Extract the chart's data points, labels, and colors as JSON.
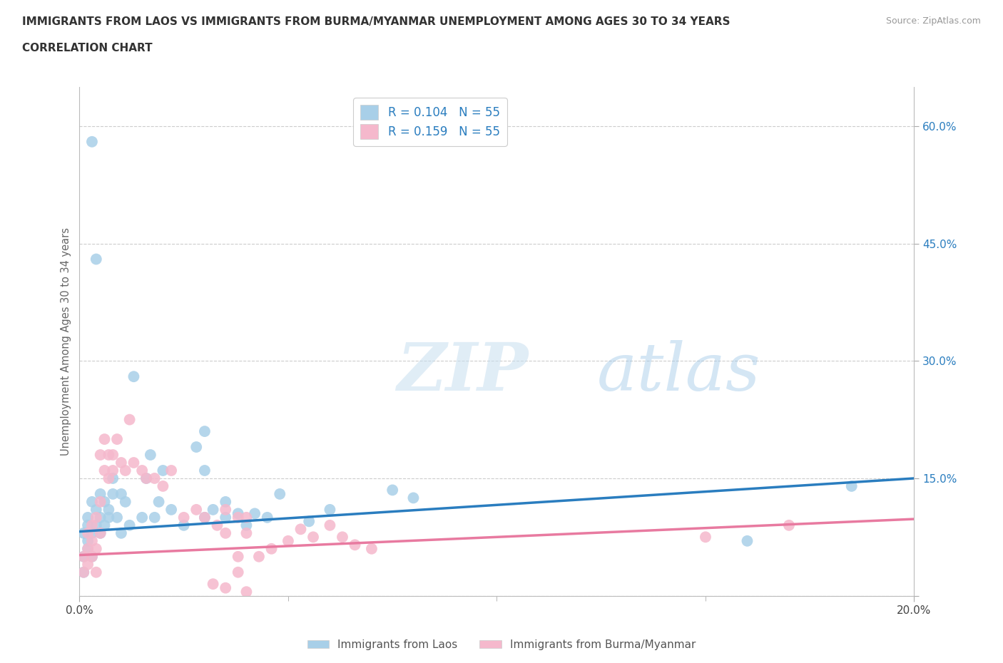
{
  "title_line1": "IMMIGRANTS FROM LAOS VS IMMIGRANTS FROM BURMA/MYANMAR UNEMPLOYMENT AMONG AGES 30 TO 34 YEARS",
  "title_line2": "CORRELATION CHART",
  "source_text": "Source: ZipAtlas.com",
  "ylabel": "Unemployment Among Ages 30 to 34 years",
  "xlim": [
    0.0,
    0.2
  ],
  "ylim": [
    0.0,
    0.65
  ],
  "ytick_vals": [
    0.0,
    0.15,
    0.3,
    0.45,
    0.6
  ],
  "ytick_labels": [
    "",
    "15.0%",
    "30.0%",
    "45.0%",
    "60.0%"
  ],
  "r_laos": 0.104,
  "n_laos": 55,
  "r_burma": 0.159,
  "n_burma": 55,
  "blue_color": "#a8cfe8",
  "pink_color": "#f5b8cc",
  "line_blue": "#2a7dbf",
  "line_pink": "#e87aa0",
  "watermark_zip": "ZIP",
  "watermark_atlas": "atlas",
  "legend_label_laos": "Immigrants from Laos",
  "legend_label_burma": "Immigrants from Burma/Myanmar",
  "laos_x": [
    0.001,
    0.001,
    0.001,
    0.002,
    0.002,
    0.002,
    0.002,
    0.003,
    0.003,
    0.003,
    0.003,
    0.004,
    0.004,
    0.004,
    0.005,
    0.005,
    0.005,
    0.006,
    0.006,
    0.007,
    0.007,
    0.008,
    0.008,
    0.009,
    0.01,
    0.01,
    0.011,
    0.012,
    0.013,
    0.015,
    0.016,
    0.017,
    0.018,
    0.019,
    0.02,
    0.022,
    0.025,
    0.028,
    0.03,
    0.032,
    0.035,
    0.038,
    0.04,
    0.042,
    0.045,
    0.048,
    0.055,
    0.06,
    0.075,
    0.08,
    0.03,
    0.03,
    0.035,
    0.16,
    0.185
  ],
  "laos_y": [
    0.05,
    0.03,
    0.08,
    0.06,
    0.09,
    0.07,
    0.1,
    0.05,
    0.08,
    0.12,
    0.58,
    0.09,
    0.11,
    0.43,
    0.1,
    0.08,
    0.13,
    0.12,
    0.09,
    0.11,
    0.1,
    0.13,
    0.15,
    0.1,
    0.08,
    0.13,
    0.12,
    0.09,
    0.28,
    0.1,
    0.15,
    0.18,
    0.1,
    0.12,
    0.16,
    0.11,
    0.09,
    0.19,
    0.1,
    0.11,
    0.1,
    0.105,
    0.09,
    0.105,
    0.1,
    0.13,
    0.095,
    0.11,
    0.135,
    0.125,
    0.21,
    0.16,
    0.12,
    0.07,
    0.14
  ],
  "burma_x": [
    0.001,
    0.001,
    0.002,
    0.002,
    0.002,
    0.003,
    0.003,
    0.003,
    0.004,
    0.004,
    0.004,
    0.005,
    0.005,
    0.005,
    0.006,
    0.006,
    0.007,
    0.007,
    0.008,
    0.008,
    0.009,
    0.01,
    0.011,
    0.012,
    0.013,
    0.015,
    0.016,
    0.018,
    0.02,
    0.022,
    0.025,
    0.028,
    0.03,
    0.033,
    0.035,
    0.038,
    0.04,
    0.043,
    0.046,
    0.05,
    0.053,
    0.056,
    0.06,
    0.063,
    0.066,
    0.07,
    0.038,
    0.04,
    0.15,
    0.17,
    0.032,
    0.035,
    0.04,
    0.038,
    0.035
  ],
  "burma_y": [
    0.03,
    0.05,
    0.04,
    0.06,
    0.08,
    0.07,
    0.09,
    0.05,
    0.03,
    0.06,
    0.1,
    0.08,
    0.12,
    0.18,
    0.16,
    0.2,
    0.18,
    0.15,
    0.16,
    0.18,
    0.2,
    0.17,
    0.16,
    0.225,
    0.17,
    0.16,
    0.15,
    0.15,
    0.14,
    0.16,
    0.1,
    0.11,
    0.1,
    0.09,
    0.11,
    0.05,
    0.08,
    0.05,
    0.06,
    0.07,
    0.085,
    0.075,
    0.09,
    0.075,
    0.065,
    0.06,
    0.1,
    0.1,
    0.075,
    0.09,
    0.015,
    0.01,
    0.005,
    0.03,
    0.08
  ],
  "line_laos_x0": 0.0,
  "line_laos_y0": 0.082,
  "line_laos_x1": 0.2,
  "line_laos_y1": 0.15,
  "line_burma_x0": 0.0,
  "line_burma_y0": 0.052,
  "line_burma_x1": 0.2,
  "line_burma_y1": 0.098
}
